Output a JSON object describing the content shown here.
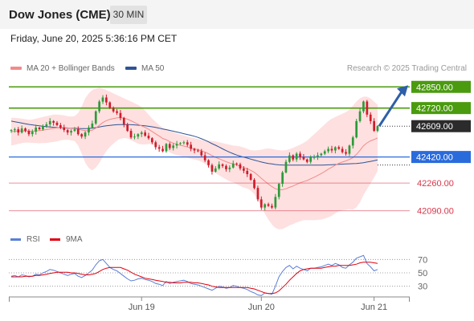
{
  "header": {
    "title": "Dow Jones (CME)",
    "timeframe": "30 MIN",
    "datetime": "Friday, June 20, 2025 5:36:16 PM CET"
  },
  "legend": {
    "ma20_label": "MA 20 + Bollinger Bands",
    "ma20_color": "#f28b8b",
    "ma50_label": "MA 50",
    "ma50_color": "#2f5496",
    "research": "Research © 2025 Trading Central"
  },
  "rsi_legend": {
    "rsi_label": "RSI",
    "rsi_color": "#5a7fd6",
    "ma_label": "9MA",
    "ma_color": "#e0000f"
  },
  "chart_data": {
    "type": "candlestick",
    "x_ticks": [
      "Jun 19",
      "Jun 20",
      "Jun 21"
    ],
    "y_range": [
      41980,
      42930
    ],
    "levels": [
      {
        "value": 42850,
        "label": "42850.00",
        "kind": "resistance",
        "color": "#4a9b0e"
      },
      {
        "value": 42720,
        "label": "42720.00",
        "kind": "resistance",
        "color": "#4a9b0e"
      },
      {
        "value": 42609,
        "label": "42609.00",
        "kind": "last",
        "color": "#2b2b2b"
      },
      {
        "value": 42420,
        "label": "42420.00",
        "kind": "pivot",
        "color": "#2a6bdc"
      },
      {
        "value": 42260,
        "label": "42260.00",
        "kind": "support",
        "color": "#d9364a"
      },
      {
        "value": 42090,
        "label": "42090.00",
        "kind": "support",
        "color": "#d9364a"
      }
    ],
    "projection": {
      "from": 42609,
      "to": 42850
    },
    "closes": [
      42585,
      42590,
      42570,
      42595,
      42580,
      42560,
      42575,
      42600,
      42590,
      42610,
      42620,
      42640,
      42630,
      42615,
      42600,
      42585,
      42570,
      42580,
      42590,
      42560,
      42545,
      42570,
      42600,
      42625,
      42700,
      42760,
      42785,
      42755,
      42720,
      42700,
      42690,
      42660,
      42620,
      42580,
      42540,
      42545,
      42560,
      42570,
      42550,
      42535,
      42510,
      42480,
      42470,
      42455,
      42500,
      42475,
      42490,
      42500,
      42505,
      42510,
      42495,
      42470,
      42460,
      42455,
      42430,
      42400,
      42370,
      42330,
      42350,
      42375,
      42365,
      42345,
      42355,
      42380,
      42375,
      42350,
      42335,
      42315,
      42280,
      42230,
      42160,
      42110,
      42130,
      42120,
      42110,
      42175,
      42255,
      42325,
      42390,
      42430,
      42405,
      42440,
      42420,
      42405,
      42390,
      42420,
      42420,
      42430,
      42440,
      42455,
      42470,
      42460,
      42480,
      42470,
      42450,
      42440,
      42490,
      42540,
      42640,
      42700,
      42760,
      42680,
      42640,
      42580,
      42609
    ],
    "ma20": [
      42575,
      42578,
      42579,
      42580,
      42580,
      42578,
      42578,
      42580,
      42582,
      42585,
      42588,
      42592,
      42596,
      42598,
      42600,
      42600,
      42598,
      42595,
      42594,
      42590,
      42585,
      42582,
      42581,
      42584,
      42597,
      42614,
      42631,
      42643,
      42651,
      42656,
      42660,
      42661,
      42658,
      42652,
      42642,
      42631,
      42621,
      42611,
      42601,
      42590,
      42576,
      42562,
      42548,
      42534,
      42526,
      42514,
      42505,
      42498,
      42492,
      42487,
      42481,
      42475,
      42470,
      42465,
      42458,
      42450,
      42440,
      42428,
      42418,
      42409,
      42400,
      42391,
      42383,
      42377,
      42371,
      42363,
      42355,
      42348,
      42338,
      42326,
      42309,
      42289,
      42271,
      42254,
      42238,
      42225,
      42219,
      42219,
      42225,
      42234,
      42242,
      42252,
      42261,
      42269,
      42276,
      42286,
      42296,
      42307,
      42318,
      42331,
      42345,
      42357,
      42370,
      42381,
      42389,
      42396,
      42405,
      42416,
      42436,
      42461,
      42489,
      42506,
      42519,
      42527,
      42537
    ],
    "bb_upper": [
      42660,
      42660,
      42658,
      42655,
      42652,
      42648,
      42650,
      42655,
      42660,
      42665,
      42670,
      42675,
      42680,
      42680,
      42678,
      42675,
      42670,
      42668,
      42670,
      42690,
      42730,
      42780,
      42810,
      42830,
      42840,
      42845,
      42840,
      42830,
      42820,
      42810,
      42800,
      42790,
      42780,
      42770,
      42760,
      42750,
      42740,
      42725,
      42705,
      42680,
      42655,
      42635,
      42615,
      42600,
      42590,
      42580,
      42572,
      42565,
      42558,
      42552,
      42546,
      42540,
      42535,
      42530,
      42525,
      42522,
      42520,
      42518,
      42515,
      42510,
      42505,
      42500,
      42495,
      42490,
      42488,
      42484,
      42478,
      42470,
      42462,
      42460,
      42462,
      42465,
      42470,
      42472,
      42470,
      42465,
      42462,
      42460,
      42462,
      42468,
      42476,
      42486,
      42496,
      42506,
      42520,
      42540,
      42560,
      42580,
      42600,
      42620,
      42640,
      42655,
      42665,
      42675,
      42685,
      42695,
      42710,
      42735,
      42760,
      42780,
      42790,
      42790,
      42780,
      42760,
      42740
    ],
    "bb_lower": [
      42490,
      42495,
      42500,
      42505,
      42508,
      42508,
      42506,
      42505,
      42504,
      42505,
      42506,
      42509,
      42512,
      42516,
      42522,
      42525,
      42526,
      42522,
      42518,
      42490,
      42440,
      42384,
      42352,
      42338,
      42354,
      42383,
      42422,
      42456,
      42482,
      42502,
      42520,
      42532,
      42536,
      42534,
      42524,
      42512,
      42502,
      42497,
      42497,
      42500,
      42497,
      42489,
      42481,
      42468,
      42462,
      42448,
      42438,
      42431,
      42426,
      42422,
      42416,
      42410,
      42405,
      42400,
      42391,
      42378,
      42360,
      42338,
      42321,
      42308,
      42295,
      42282,
      42271,
      42264,
      42254,
      42242,
      42232,
      42226,
      42214,
      42192,
      42156,
      42113,
      42072,
      42036,
      42006,
      41985,
      41976,
      41978,
      41988,
      42000,
      42008,
      42018,
      42026,
      42032,
      42032,
      42032,
      42032,
      42034,
      42036,
      42042,
      42050,
      42059,
      42075,
      42087,
      42093,
      42097,
      42100,
      42097,
      42112,
      42142,
      42188,
      42222,
      42258,
      42294,
      42334
    ],
    "ma50": [
      42640,
      42636,
      42632,
      42628,
      42624,
      42620,
      42617,
      42614,
      42611,
      42608,
      42606,
      42604,
      42602,
      42600,
      42599,
      42598,
      42597,
      42596,
      42596,
      42595,
      42594,
      42594,
      42595,
      42597,
      42600,
      42604,
      42608,
      42611,
      42614,
      42616,
      42618,
      42619,
      42619,
      42619,
      42618,
      42617,
      42615,
      42613,
      42611,
      42608,
      42605,
      42601,
      42597,
      42592,
      42588,
      42583,
      42578,
      42573,
      42568,
      42563,
      42558,
      42553,
      42547,
      42540,
      42532,
      42523,
      42513,
      42502,
      42492,
      42481,
      42470,
      42459,
      42449,
      42440,
      42432,
      42425,
      42419,
      42413,
      42407,
      42401,
      42395,
      42389,
      42384,
      42380,
      42377,
      42374,
      42372,
      42371,
      42370,
      42370,
      42370,
      42370,
      42370,
      42370,
      42370,
      42370,
      42370,
      42370,
      42370,
      42371,
      42372,
      42373,
      42374,
      42375,
      42376,
      42377,
      42378,
      42379,
      42380,
      42382,
      42385,
      42389,
      42393,
      42397,
      42402
    ],
    "rsi": [
      45,
      46,
      44,
      47,
      46,
      44,
      45,
      48,
      47,
      50,
      52,
      55,
      54,
      52,
      50,
      48,
      46,
      48,
      49,
      45,
      43,
      46,
      50,
      54,
      62,
      68,
      70,
      64,
      58,
      55,
      53,
      49,
      45,
      41,
      38,
      39,
      41,
      42,
      40,
      39,
      37,
      34,
      33,
      31,
      37,
      34,
      36,
      37,
      38,
      39,
      37,
      34,
      33,
      32,
      30,
      28,
      26,
      24,
      27,
      30,
      29,
      27,
      28,
      31,
      30,
      28,
      27,
      25,
      22,
      20,
      17,
      16,
      20,
      19,
      18,
      30,
      44,
      52,
      58,
      61,
      56,
      60,
      57,
      55,
      53,
      57,
      57,
      58,
      59,
      61,
      63,
      61,
      64,
      62,
      58,
      57,
      62,
      66,
      72,
      74,
      76,
      64,
      59,
      53,
      55
    ],
    "rsi_ma": [
      44,
      44,
      44,
      44,
      45,
      45,
      45,
      46,
      46,
      47,
      48,
      49,
      50,
      51,
      51,
      51,
      51,
      50,
      50,
      49,
      48,
      47,
      47,
      48,
      49,
      52,
      55,
      57,
      58,
      58,
      58,
      58,
      56,
      54,
      51,
      48,
      46,
      44,
      42,
      41,
      40,
      39,
      38,
      37,
      36,
      36,
      35,
      35,
      35,
      36,
      36,
      36,
      35,
      35,
      34,
      33,
      32,
      30,
      29,
      28,
      28,
      28,
      28,
      28,
      28,
      28,
      28,
      28,
      27,
      26,
      24,
      22,
      20,
      19,
      19,
      20,
      23,
      28,
      33,
      39,
      44,
      49,
      53,
      55,
      56,
      57,
      57,
      57,
      57,
      58,
      59,
      60,
      60,
      61,
      61,
      61,
      61,
      62,
      63,
      65,
      66,
      66,
      66,
      65,
      64
    ],
    "rsi_levels": [
      70,
      50,
      30
    ]
  }
}
